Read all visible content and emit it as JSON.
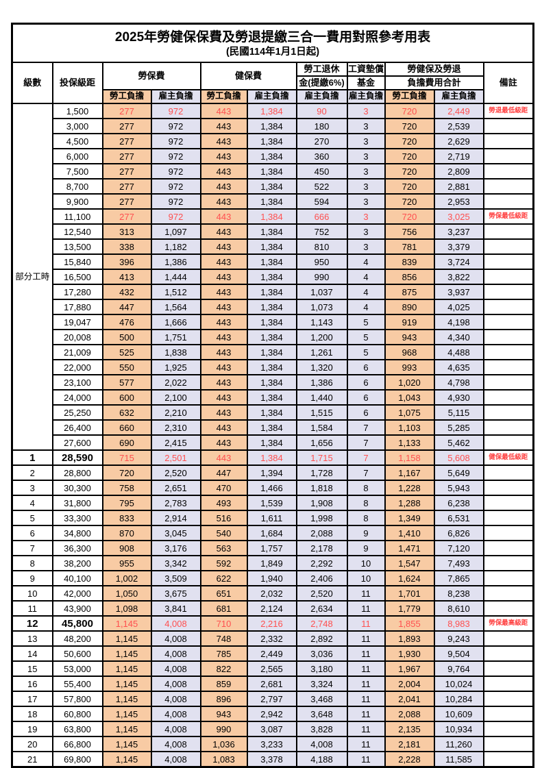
{
  "title": "2025年勞健保保費及勞退提繳三合一費用對照參考用表",
  "subtitle": "(民國114年1月1日起)",
  "colors": {
    "employee_bg": "#F8CBA4",
    "employer_bg": "#E1E1F0",
    "highlight_text": "#FF4F4F",
    "note_text": "#FF4242",
    "border": "#000000"
  },
  "header": {
    "level": "級數",
    "bracket": "投保級距",
    "labor_insurance": "勞保費",
    "health_insurance": "健保費",
    "pension_line1": "勞工退休",
    "pension_line2": "金(提繳6%)",
    "wage_fund_line1": "工資墊償",
    "wage_fund_line2": "基金",
    "total_line1": "勞健保及勞退",
    "total_line2": "負擔費用合計",
    "note": "備註",
    "employee_share": "勞工負擔",
    "employer_share": "雇主負擔"
  },
  "table": {
    "group_label": "部分工時",
    "group_span": 23,
    "rows": [
      {
        "level": "",
        "bracket": "1,500",
        "v": [
          "277",
          "972",
          "443",
          "1,384",
          "90",
          "3",
          "720",
          "2,449"
        ],
        "note": "勞退最低級距",
        "red": true,
        "bold": false
      },
      {
        "level": "",
        "bracket": "3,000",
        "v": [
          "277",
          "972",
          "443",
          "1,384",
          "180",
          "3",
          "720",
          "2,539"
        ],
        "note": "",
        "red": false,
        "bold": false
      },
      {
        "level": "",
        "bracket": "4,500",
        "v": [
          "277",
          "972",
          "443",
          "1,384",
          "270",
          "3",
          "720",
          "2,629"
        ],
        "note": "",
        "red": false,
        "bold": false
      },
      {
        "level": "",
        "bracket": "6,000",
        "v": [
          "277",
          "972",
          "443",
          "1,384",
          "360",
          "3",
          "720",
          "2,719"
        ],
        "note": "",
        "red": false,
        "bold": false
      },
      {
        "level": "",
        "bracket": "7,500",
        "v": [
          "277",
          "972",
          "443",
          "1,384",
          "450",
          "3",
          "720",
          "2,809"
        ],
        "note": "",
        "red": false,
        "bold": false
      },
      {
        "level": "",
        "bracket": "8,700",
        "v": [
          "277",
          "972",
          "443",
          "1,384",
          "522",
          "3",
          "720",
          "2,881"
        ],
        "note": "",
        "red": false,
        "bold": false
      },
      {
        "level": "",
        "bracket": "9,900",
        "v": [
          "277",
          "972",
          "443",
          "1,384",
          "594",
          "3",
          "720",
          "2,953"
        ],
        "note": "",
        "red": false,
        "bold": false
      },
      {
        "level": "",
        "bracket": "11,100",
        "v": [
          "277",
          "972",
          "443",
          "1,384",
          "666",
          "3",
          "720",
          "3,025"
        ],
        "note": "勞保最低級距",
        "red": true,
        "bold": false
      },
      {
        "level": "",
        "bracket": "12,540",
        "v": [
          "313",
          "1,097",
          "443",
          "1,384",
          "752",
          "3",
          "756",
          "3,237"
        ],
        "note": "",
        "red": false,
        "bold": false
      },
      {
        "level": "",
        "bracket": "13,500",
        "v": [
          "338",
          "1,182",
          "443",
          "1,384",
          "810",
          "3",
          "781",
          "3,379"
        ],
        "note": "",
        "red": false,
        "bold": false
      },
      {
        "level": "",
        "bracket": "15,840",
        "v": [
          "396",
          "1,386",
          "443",
          "1,384",
          "950",
          "4",
          "839",
          "3,724"
        ],
        "note": "",
        "red": false,
        "bold": false
      },
      {
        "level": "",
        "bracket": "16,500",
        "v": [
          "413",
          "1,444",
          "443",
          "1,384",
          "990",
          "4",
          "856",
          "3,822"
        ],
        "note": "",
        "red": false,
        "bold": false
      },
      {
        "level": "",
        "bracket": "17,280",
        "v": [
          "432",
          "1,512",
          "443",
          "1,384",
          "1,037",
          "4",
          "875",
          "3,937"
        ],
        "note": "",
        "red": false,
        "bold": false
      },
      {
        "level": "",
        "bracket": "17,880",
        "v": [
          "447",
          "1,564",
          "443",
          "1,384",
          "1,073",
          "4",
          "890",
          "4,025"
        ],
        "note": "",
        "red": false,
        "bold": false
      },
      {
        "level": "",
        "bracket": "19,047",
        "v": [
          "476",
          "1,666",
          "443",
          "1,384",
          "1,143",
          "5",
          "919",
          "4,198"
        ],
        "note": "",
        "red": false,
        "bold": false
      },
      {
        "level": "",
        "bracket": "20,008",
        "v": [
          "500",
          "1,751",
          "443",
          "1,384",
          "1,200",
          "5",
          "943",
          "4,340"
        ],
        "note": "",
        "red": false,
        "bold": false
      },
      {
        "level": "",
        "bracket": "21,009",
        "v": [
          "525",
          "1,838",
          "443",
          "1,384",
          "1,261",
          "5",
          "968",
          "4,488"
        ],
        "note": "",
        "red": false,
        "bold": false
      },
      {
        "level": "",
        "bracket": "22,000",
        "v": [
          "550",
          "1,925",
          "443",
          "1,384",
          "1,320",
          "6",
          "993",
          "4,635"
        ],
        "note": "",
        "red": false,
        "bold": false
      },
      {
        "level": "",
        "bracket": "23,100",
        "v": [
          "577",
          "2,022",
          "443",
          "1,384",
          "1,386",
          "6",
          "1,020",
          "4,798"
        ],
        "note": "",
        "red": false,
        "bold": false
      },
      {
        "level": "",
        "bracket": "24,000",
        "v": [
          "600",
          "2,100",
          "443",
          "1,384",
          "1,440",
          "6",
          "1,043",
          "4,930"
        ],
        "note": "",
        "red": false,
        "bold": false
      },
      {
        "level": "",
        "bracket": "25,250",
        "v": [
          "632",
          "2,210",
          "443",
          "1,384",
          "1,515",
          "6",
          "1,075",
          "5,115"
        ],
        "note": "",
        "red": false,
        "bold": false
      },
      {
        "level": "",
        "bracket": "26,400",
        "v": [
          "660",
          "2,310",
          "443",
          "1,384",
          "1,584",
          "7",
          "1,103",
          "5,285"
        ],
        "note": "",
        "red": false,
        "bold": false
      },
      {
        "level": "",
        "bracket": "27,600",
        "v": [
          "690",
          "2,415",
          "443",
          "1,384",
          "1,656",
          "7",
          "1,133",
          "5,462"
        ],
        "note": "",
        "red": false,
        "bold": false
      },
      {
        "level": "1",
        "bracket": "28,590",
        "v": [
          "715",
          "2,501",
          "443",
          "1,384",
          "1,715",
          "7",
          "1,158",
          "5,608"
        ],
        "note": "健保最低級距",
        "red": true,
        "bold": true
      },
      {
        "level": "2",
        "bracket": "28,800",
        "v": [
          "720",
          "2,520",
          "447",
          "1,394",
          "1,728",
          "7",
          "1,167",
          "5,649"
        ],
        "note": "",
        "red": false,
        "bold": false
      },
      {
        "level": "3",
        "bracket": "30,300",
        "v": [
          "758",
          "2,651",
          "470",
          "1,466",
          "1,818",
          "8",
          "1,228",
          "5,943"
        ],
        "note": "",
        "red": false,
        "bold": false
      },
      {
        "level": "4",
        "bracket": "31,800",
        "v": [
          "795",
          "2,783",
          "493",
          "1,539",
          "1,908",
          "8",
          "1,288",
          "6,238"
        ],
        "note": "",
        "red": false,
        "bold": false
      },
      {
        "level": "5",
        "bracket": "33,300",
        "v": [
          "833",
          "2,914",
          "516",
          "1,611",
          "1,998",
          "8",
          "1,349",
          "6,531"
        ],
        "note": "",
        "red": false,
        "bold": false
      },
      {
        "level": "6",
        "bracket": "34,800",
        "v": [
          "870",
          "3,045",
          "540",
          "1,684",
          "2,088",
          "9",
          "1,410",
          "6,826"
        ],
        "note": "",
        "red": false,
        "bold": false
      },
      {
        "level": "7",
        "bracket": "36,300",
        "v": [
          "908",
          "3,176",
          "563",
          "1,757",
          "2,178",
          "9",
          "1,471",
          "7,120"
        ],
        "note": "",
        "red": false,
        "bold": false
      },
      {
        "level": "8",
        "bracket": "38,200",
        "v": [
          "955",
          "3,342",
          "592",
          "1,849",
          "2,292",
          "10",
          "1,547",
          "7,493"
        ],
        "note": "",
        "red": false,
        "bold": false
      },
      {
        "level": "9",
        "bracket": "40,100",
        "v": [
          "1,002",
          "3,509",
          "622",
          "1,940",
          "2,406",
          "10",
          "1,624",
          "7,865"
        ],
        "note": "",
        "red": false,
        "bold": false
      },
      {
        "level": "10",
        "bracket": "42,000",
        "v": [
          "1,050",
          "3,675",
          "651",
          "2,032",
          "2,520",
          "11",
          "1,701",
          "8,238"
        ],
        "note": "",
        "red": false,
        "bold": false
      },
      {
        "level": "11",
        "bracket": "43,900",
        "v": [
          "1,098",
          "3,841",
          "681",
          "2,124",
          "2,634",
          "11",
          "1,779",
          "8,610"
        ],
        "note": "",
        "red": false,
        "bold": false
      },
      {
        "level": "12",
        "bracket": "45,800",
        "v": [
          "1,145",
          "4,008",
          "710",
          "2,216",
          "2,748",
          "11",
          "1,855",
          "8,983"
        ],
        "note": "勞保最高級距",
        "red": true,
        "bold": true
      },
      {
        "level": "13",
        "bracket": "48,200",
        "v": [
          "1,145",
          "4,008",
          "748",
          "2,332",
          "2,892",
          "11",
          "1,893",
          "9,243"
        ],
        "note": "",
        "red": false,
        "bold": false
      },
      {
        "level": "14",
        "bracket": "50,600",
        "v": [
          "1,145",
          "4,008",
          "785",
          "2,449",
          "3,036",
          "11",
          "1,930",
          "9,504"
        ],
        "note": "",
        "red": false,
        "bold": false
      },
      {
        "level": "15",
        "bracket": "53,000",
        "v": [
          "1,145",
          "4,008",
          "822",
          "2,565",
          "3,180",
          "11",
          "1,967",
          "9,764"
        ],
        "note": "",
        "red": false,
        "bold": false
      },
      {
        "level": "16",
        "bracket": "55,400",
        "v": [
          "1,145",
          "4,008",
          "859",
          "2,681",
          "3,324",
          "11",
          "2,004",
          "10,024"
        ],
        "note": "",
        "red": false,
        "bold": false
      },
      {
        "level": "17",
        "bracket": "57,800",
        "v": [
          "1,145",
          "4,008",
          "896",
          "2,797",
          "3,468",
          "11",
          "2,041",
          "10,284"
        ],
        "note": "",
        "red": false,
        "bold": false
      },
      {
        "level": "18",
        "bracket": "60,800",
        "v": [
          "1,145",
          "4,008",
          "943",
          "2,942",
          "3,648",
          "11",
          "2,088",
          "10,609"
        ],
        "note": "",
        "red": false,
        "bold": false
      },
      {
        "level": "19",
        "bracket": "63,800",
        "v": [
          "1,145",
          "4,008",
          "990",
          "3,087",
          "3,828",
          "11",
          "2,135",
          "10,934"
        ],
        "note": "",
        "red": false,
        "bold": false
      },
      {
        "level": "20",
        "bracket": "66,800",
        "v": [
          "1,145",
          "4,008",
          "1,036",
          "3,233",
          "4,008",
          "11",
          "2,181",
          "11,260"
        ],
        "note": "",
        "red": false,
        "bold": false
      },
      {
        "level": "21",
        "bracket": "69,800",
        "v": [
          "1,145",
          "4,008",
          "1,083",
          "3,378",
          "4,188",
          "11",
          "2,228",
          "11,585"
        ],
        "note": "",
        "red": false,
        "bold": false
      }
    ]
  }
}
